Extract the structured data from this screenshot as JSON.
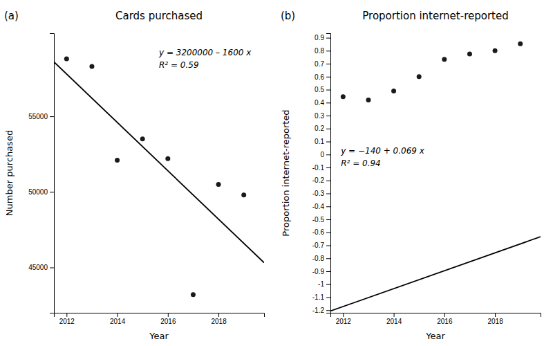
{
  "chart_data": [
    {
      "type": "scatter",
      "title": "Cards purchased",
      "xlabel": "Year",
      "ylabel": "Number purchased",
      "annotations": [
        "y = 3200000 – 1600 x",
        "R² = 0.59",
        "(a)"
      ],
      "series": [
        {
          "type": "scatter",
          "color": "#1a1a1a",
          "x": [
            2012,
            2013,
            2014,
            2015,
            2016,
            2017,
            2018,
            2019
          ],
          "values": [
            58800,
            58300,
            52100,
            53500,
            52200,
            43200,
            50500,
            49800
          ]
        },
        {
          "type": "line",
          "color": "#000000",
          "x": [
            2011.5,
            2019.8
          ],
          "values": [
            58600,
            45320
          ]
        }
      ],
      "xlim": [
        2011.5,
        2019.8
      ],
      "ylim": [
        42000,
        60500
      ],
      "xticks": [
        2012,
        2014,
        2016,
        2018
      ],
      "yticks": [
        45000,
        50000,
        55000
      ]
    },
    {
      "type": "scatter",
      "title": "Proportion internet-reported",
      "xlabel": "Year",
      "ylabel": "Proportion internet-reported",
      "annotations": [
        "y = −140 + 0.069 x",
        "R² = 0.94",
        "(b)"
      ],
      "series": [
        {
          "type": "scatter",
          "color": "#1a1a1a",
          "x": [
            2012,
            2013,
            2014,
            2015,
            2016,
            2017,
            2018,
            2019
          ],
          "values": [
            0.445,
            0.42,
            0.49,
            0.6,
            0.733,
            0.775,
            0.8,
            0.853
          ]
        },
        {
          "type": "line",
          "color": "#000000",
          "x": [
            2011.5,
            2019.8
          ],
          "values": [
            -1.2065,
            -0.6338
          ]
        }
      ],
      "xlim": [
        2011.5,
        2019.8
      ],
      "ylim": [
        -1.22,
        0.935
      ],
      "xticks": [
        2012,
        2014,
        2016,
        2018
      ],
      "yticks": [
        -1.2,
        -1.1,
        -1,
        -0.9,
        -0.8,
        -0.7,
        -0.6,
        -0.5,
        -0.4,
        -0.3,
        -0.2,
        -0.1,
        0,
        0.1,
        0.2,
        0.3,
        0.4,
        0.5,
        0.6,
        0.7,
        0.8,
        0.9
      ]
    }
  ]
}
